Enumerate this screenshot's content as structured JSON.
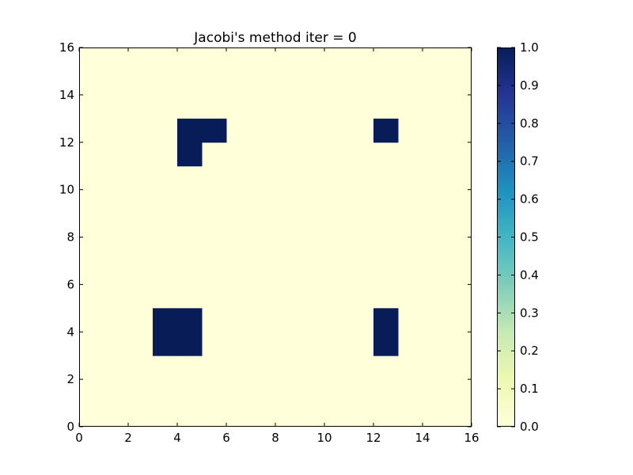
{
  "chart_data": {
    "type": "heatmap",
    "title": "Jacobi's method iter = 0",
    "xlabel": "",
    "ylabel": "",
    "xlim": [
      0,
      16
    ],
    "ylim": [
      0,
      16
    ],
    "x_ticks": [
      0,
      2,
      4,
      6,
      8,
      10,
      12,
      14,
      16
    ],
    "y_ticks": [
      0,
      2,
      4,
      6,
      8,
      10,
      12,
      14,
      16
    ],
    "grid": false,
    "background_value": 0.0,
    "cells": [
      {
        "x": 3,
        "y": 3,
        "value": 1.0
      },
      {
        "x": 4,
        "y": 3,
        "value": 1.0
      },
      {
        "x": 3,
        "y": 4,
        "value": 1.0
      },
      {
        "x": 4,
        "y": 4,
        "value": 1.0
      },
      {
        "x": 12,
        "y": 3,
        "value": 1.0
      },
      {
        "x": 12,
        "y": 4,
        "value": 1.0
      },
      {
        "x": 4,
        "y": 11,
        "value": 1.0
      },
      {
        "x": 4,
        "y": 12,
        "value": 1.0
      },
      {
        "x": 5,
        "y": 12,
        "value": 1.0
      },
      {
        "x": 12,
        "y": 12,
        "value": 1.0
      }
    ],
    "colorbar": {
      "colormap": "YlGnBu",
      "range": [
        0.0,
        1.0
      ],
      "tick_labels": [
        "0.0",
        "0.1",
        "0.2",
        "0.3",
        "0.4",
        "0.5",
        "0.6",
        "0.7",
        "0.8",
        "0.9",
        "1.0"
      ],
      "color_stops": [
        "#ffffd9",
        "#edf8b1",
        "#c7e9b4",
        "#7fcdbb",
        "#41b6c4",
        "#1d91c0",
        "#225ea8",
        "#253494",
        "#081d58"
      ]
    }
  }
}
